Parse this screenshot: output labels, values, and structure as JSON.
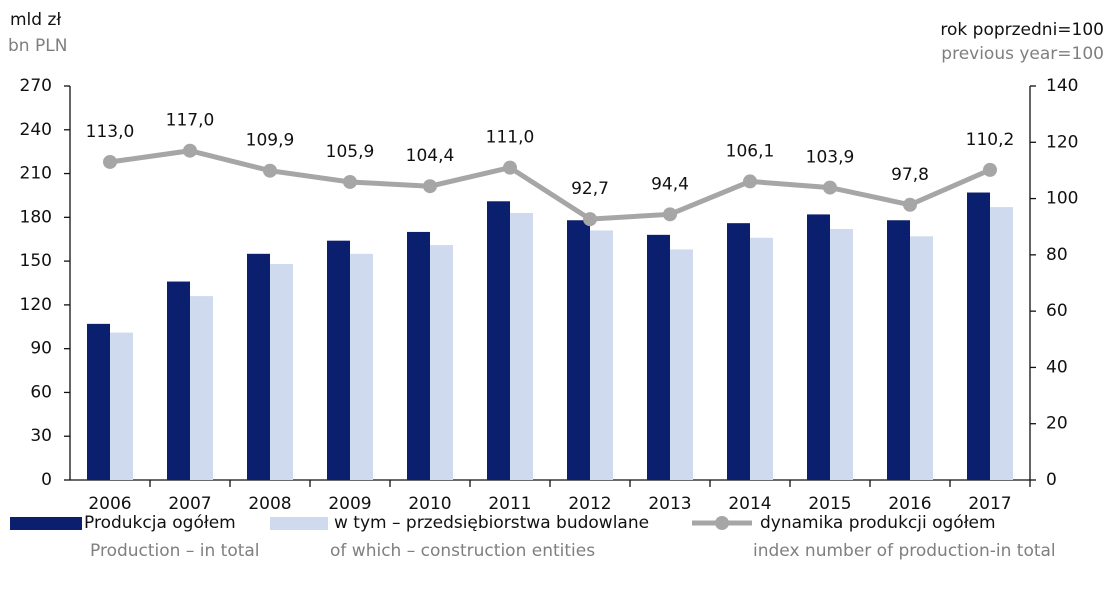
{
  "chart_data": {
    "type": "bar-line",
    "ylabel": "mld zł",
    "ylabel_en": "bn PLN",
    "y2label": "rok poprzedni=100",
    "y2label_en": "previous year=100",
    "categories": [
      "2006",
      "2007",
      "2008",
      "2009",
      "2010",
      "2011",
      "2012",
      "2013",
      "2014",
      "2015",
      "2016",
      "2017"
    ],
    "ylim": [
      0,
      270
    ],
    "yticks": [
      0,
      30,
      60,
      90,
      120,
      150,
      180,
      210,
      240,
      270
    ],
    "y2lim": [
      0,
      140
    ],
    "y2ticks": [
      0,
      20,
      40,
      60,
      80,
      100,
      120,
      140
    ],
    "series": [
      {
        "name": "Produkcja ogółem",
        "name_en": "Production – in total",
        "type": "bar",
        "color": "#0b1f6f",
        "values": [
          107,
          136,
          155,
          164,
          170,
          191,
          178,
          168,
          176,
          182,
          178,
          197
        ]
      },
      {
        "name": "w tym – przedsiębiorstwa budowlane",
        "name_en": "of which – construction entities",
        "type": "bar",
        "color": "#cfdaef",
        "values": [
          101,
          126,
          148,
          155,
          161,
          183,
          171,
          158,
          166,
          172,
          167,
          187
        ]
      },
      {
        "name": "dynamika produkcji ogółem",
        "name_en": "index number of production-in total",
        "type": "line",
        "axis": "y2",
        "color": "#a6a6a6",
        "values": [
          113.0,
          117.0,
          109.9,
          105.9,
          104.4,
          111.0,
          92.7,
          94.4,
          106.1,
          103.9,
          97.8,
          110.2
        ],
        "value_labels": [
          "113,0",
          "117,0",
          "109,9",
          "105,9",
          "104,4",
          "111,0",
          "92,7",
          "94,4",
          "106,1",
          "103,9",
          "97,8",
          "110,2"
        ]
      }
    ]
  }
}
